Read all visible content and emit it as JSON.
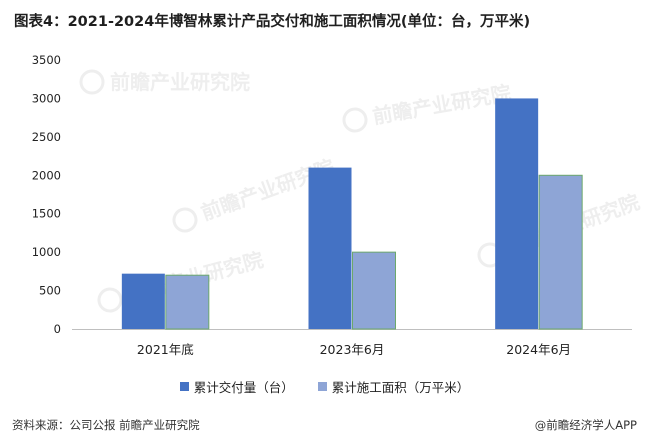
{
  "title": "图表4：2021-2024年博智林累计产品交付和施工面积情况(单位：台，万平米)",
  "footer": {
    "source": "资料来源：公司公报 前瞻产业研究院",
    "brand": "@前瞻经济学人APP"
  },
  "watermark": {
    "text": "前瞻产业研究院"
  },
  "colors": {
    "series1": "#4472C4",
    "series2": "#8EA5D6",
    "series2_border": "#6CA86C",
    "axis": "#bfbfbf",
    "text": "#222222"
  },
  "chart_data": {
    "type": "bar",
    "categories": [
      "2021年底",
      "2023年6月",
      "2024年6月"
    ],
    "series": [
      {
        "name": "累计交付量（台）",
        "values": [
          720,
          2100,
          3000
        ]
      },
      {
        "name": "累计施工面积（万平米）",
        "values": [
          700,
          1000,
          2000
        ]
      }
    ],
    "yticks": [
      0,
      500,
      1000,
      1500,
      2000,
      2500,
      3000,
      3500
    ],
    "ylim": [
      0,
      3500
    ],
    "grid": false,
    "legend_position": "bottom"
  }
}
